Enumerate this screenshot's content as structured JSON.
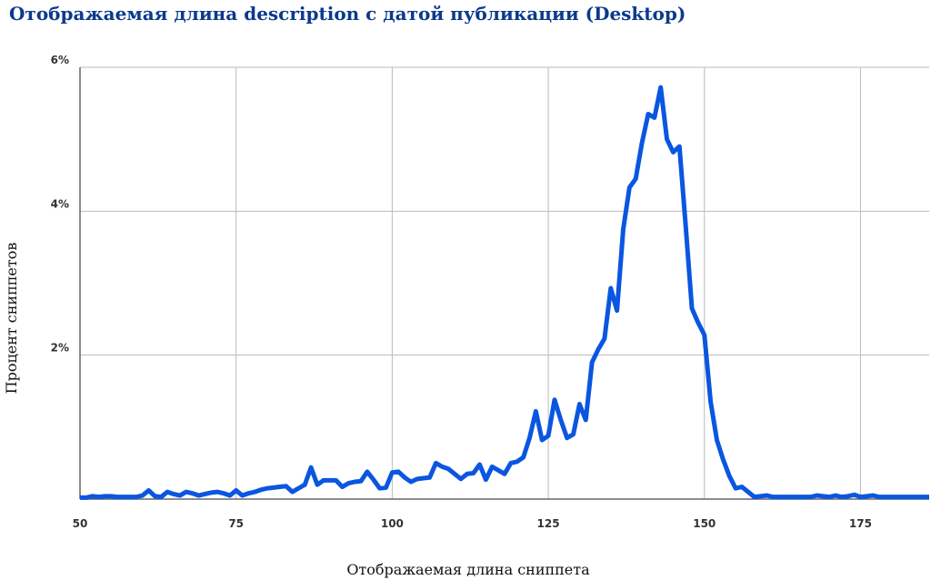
{
  "chart_data": {
    "type": "line",
    "title": "Отображаемая длина description с датой публикации (Desktop)",
    "x_label": "Отображаемая длина сниппета",
    "y_label": "Процент сниппетов",
    "x": [
      50,
      51,
      52,
      53,
      54,
      55,
      56,
      57,
      58,
      59,
      60,
      61,
      62,
      63,
      64,
      65,
      66,
      67,
      68,
      69,
      70,
      71,
      72,
      73,
      74,
      75,
      76,
      77,
      78,
      79,
      80,
      81,
      82,
      83,
      84,
      85,
      86,
      87,
      88,
      89,
      90,
      91,
      92,
      93,
      94,
      95,
      96,
      97,
      98,
      99,
      100,
      101,
      102,
      103,
      104,
      105,
      106,
      107,
      108,
      109,
      110,
      111,
      112,
      113,
      114,
      115,
      116,
      117,
      118,
      119,
      120,
      121,
      122,
      123,
      124,
      125,
      126,
      127,
      128,
      129,
      130,
      131,
      132,
      133,
      134,
      135,
      136,
      137,
      138,
      139,
      140,
      141,
      142,
      143,
      144,
      145,
      146,
      147,
      148,
      149,
      150,
      151,
      152,
      153,
      154,
      155,
      156,
      157,
      158,
      159,
      160,
      161,
      162,
      163,
      164,
      165,
      166,
      167,
      168,
      169,
      170,
      171,
      172,
      173,
      174,
      175,
      176,
      177,
      178,
      179,
      180,
      181,
      182,
      183,
      184,
      185,
      186
    ],
    "series": [
      {
        "name": "Desktop",
        "color": "#0a56e0",
        "values": [
          0.02,
          0.02,
          0.04,
          0.03,
          0.04,
          0.04,
          0.03,
          0.03,
          0.03,
          0.03,
          0.05,
          0.12,
          0.04,
          0.03,
          0.1,
          0.07,
          0.05,
          0.1,
          0.08,
          0.05,
          0.07,
          0.09,
          0.1,
          0.08,
          0.05,
          0.12,
          0.05,
          0.08,
          0.1,
          0.13,
          0.15,
          0.16,
          0.17,
          0.18,
          0.1,
          0.15,
          0.2,
          0.44,
          0.2,
          0.26,
          0.26,
          0.26,
          0.17,
          0.22,
          0.24,
          0.25,
          0.38,
          0.27,
          0.15,
          0.16,
          0.37,
          0.38,
          0.3,
          0.24,
          0.28,
          0.29,
          0.3,
          0.5,
          0.45,
          0.42,
          0.35,
          0.28,
          0.35,
          0.36,
          0.48,
          0.27,
          0.45,
          0.4,
          0.35,
          0.5,
          0.52,
          0.58,
          0.85,
          1.22,
          0.82,
          0.88,
          1.38,
          1.1,
          0.85,
          0.9,
          1.32,
          1.1,
          1.9,
          2.08,
          2.23,
          2.93,
          2.62,
          3.75,
          4.33,
          4.45,
          4.95,
          5.35,
          5.3,
          5.72,
          5.0,
          4.82,
          4.9,
          3.8,
          2.65,
          2.45,
          2.28,
          1.35,
          0.82,
          0.55,
          0.32,
          0.15,
          0.17,
          0.1,
          0.03,
          0.04,
          0.05,
          0.03,
          0.03,
          0.03,
          0.03,
          0.03,
          0.03,
          0.03,
          0.05,
          0.04,
          0.03,
          0.05,
          0.03,
          0.04,
          0.06,
          0.03,
          0.04,
          0.05,
          0.03,
          0.03,
          0.03,
          0.03,
          0.03,
          0.03,
          0.03,
          0.03,
          0.03
        ]
      }
    ],
    "xlim": [
      50,
      186
    ],
    "ylim": [
      0,
      6
    ],
    "xticks": [
      50,
      75,
      100,
      125,
      150,
      175
    ],
    "yticks": [
      {
        "value": 2,
        "label": "2%"
      },
      {
        "value": 4,
        "label": "4%"
      },
      {
        "value": 6,
        "label": "6%"
      }
    ],
    "grid": true
  }
}
